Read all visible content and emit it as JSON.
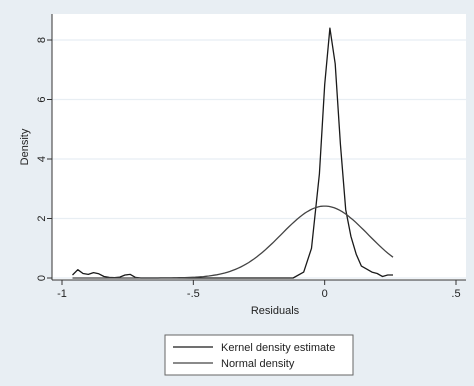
{
  "chart_data": {
    "type": "line",
    "title": "",
    "xlabel": "Residuals",
    "ylabel": "Density",
    "xlim": [
      -1,
      0.5
    ],
    "ylim": [
      0,
      8.6
    ],
    "x_ticks": [
      {
        "value": -1,
        "label": "-1"
      },
      {
        "value": -0.5,
        "label": "-.5"
      },
      {
        "value": 0,
        "label": "0"
      },
      {
        "value": 0.5,
        "label": ".5"
      }
    ],
    "y_ticks": [
      {
        "value": 0,
        "label": "0"
      },
      {
        "value": 2,
        "label": "2"
      },
      {
        "value": 4,
        "label": "4"
      },
      {
        "value": 6,
        "label": "6"
      },
      {
        "value": 8,
        "label": "8"
      }
    ],
    "grid": true,
    "legend_position": "bottom",
    "colors": {
      "outer_background": "#e8eef3",
      "plot_background": "#ffffff",
      "grid": "#e8eef3",
      "kernel_line": "#1a1a1a",
      "normal_line": "#444444"
    },
    "series": [
      {
        "name": "Kernel density estimate",
        "points": [
          [
            -0.96,
            0.1
          ],
          [
            -0.94,
            0.28
          ],
          [
            -0.92,
            0.15
          ],
          [
            -0.9,
            0.12
          ],
          [
            -0.88,
            0.18
          ],
          [
            -0.86,
            0.14
          ],
          [
            -0.84,
            0.05
          ],
          [
            -0.82,
            0.02
          ],
          [
            -0.8,
            0.01
          ],
          [
            -0.78,
            0.03
          ],
          [
            -0.76,
            0.1
          ],
          [
            -0.74,
            0.12
          ],
          [
            -0.72,
            0.02
          ],
          [
            -0.7,
            0.0
          ],
          [
            -0.6,
            0.0
          ],
          [
            -0.5,
            0.0
          ],
          [
            -0.4,
            0.0
          ],
          [
            -0.3,
            0.0
          ],
          [
            -0.2,
            0.0
          ],
          [
            -0.12,
            0.0
          ],
          [
            -0.08,
            0.2
          ],
          [
            -0.05,
            1.0
          ],
          [
            -0.02,
            3.5
          ],
          [
            0.0,
            6.5
          ],
          [
            0.02,
            8.4
          ],
          [
            0.04,
            7.2
          ],
          [
            0.06,
            4.5
          ],
          [
            0.08,
            2.3
          ],
          [
            0.1,
            1.4
          ],
          [
            0.12,
            0.8
          ],
          [
            0.14,
            0.4
          ],
          [
            0.16,
            0.3
          ],
          [
            0.18,
            0.2
          ],
          [
            0.2,
            0.15
          ],
          [
            0.22,
            0.05
          ],
          [
            0.24,
            0.1
          ],
          [
            0.26,
            0.1
          ]
        ]
      },
      {
        "name": "Normal density",
        "mean": 0.0,
        "sd": 0.165,
        "x_range": [
          -0.96,
          0.26
        ]
      }
    ]
  }
}
